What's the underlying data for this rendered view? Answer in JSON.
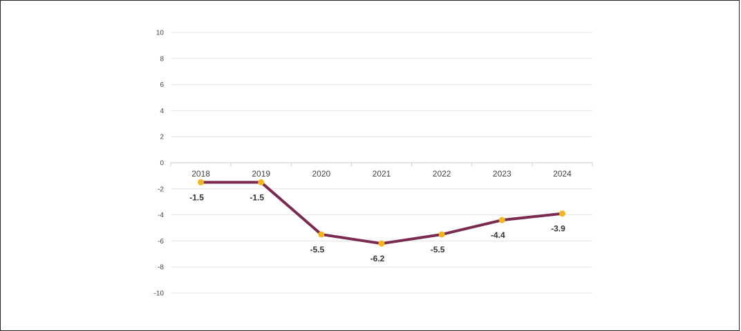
{
  "chart_data": {
    "type": "line",
    "title": "",
    "xlabel": "",
    "ylabel": "",
    "categories": [
      "2018",
      "2019",
      "2020",
      "2021",
      "2022",
      "2023",
      "2024"
    ],
    "series": [
      {
        "values": [
          -1.5,
          -1.5,
          -5.5,
          -6.2,
          -5.5,
          -4.4,
          -3.9
        ]
      }
    ],
    "data_labels": [
      "-1.5",
      "-1.5",
      "-5.5",
      "-6.2",
      "-5.5",
      "-4.4",
      "-3.9"
    ],
    "yticks": [
      10,
      8,
      6,
      4,
      2,
      0,
      -2,
      -4,
      -6,
      -8,
      -10
    ],
    "ylim": [
      -10,
      10
    ],
    "grid": true,
    "legend": "none",
    "colors": {
      "line": "#7b2a52",
      "marker": "#f2b51f",
      "grid": "#e3e3e3",
      "axis": "#cccccc"
    }
  }
}
